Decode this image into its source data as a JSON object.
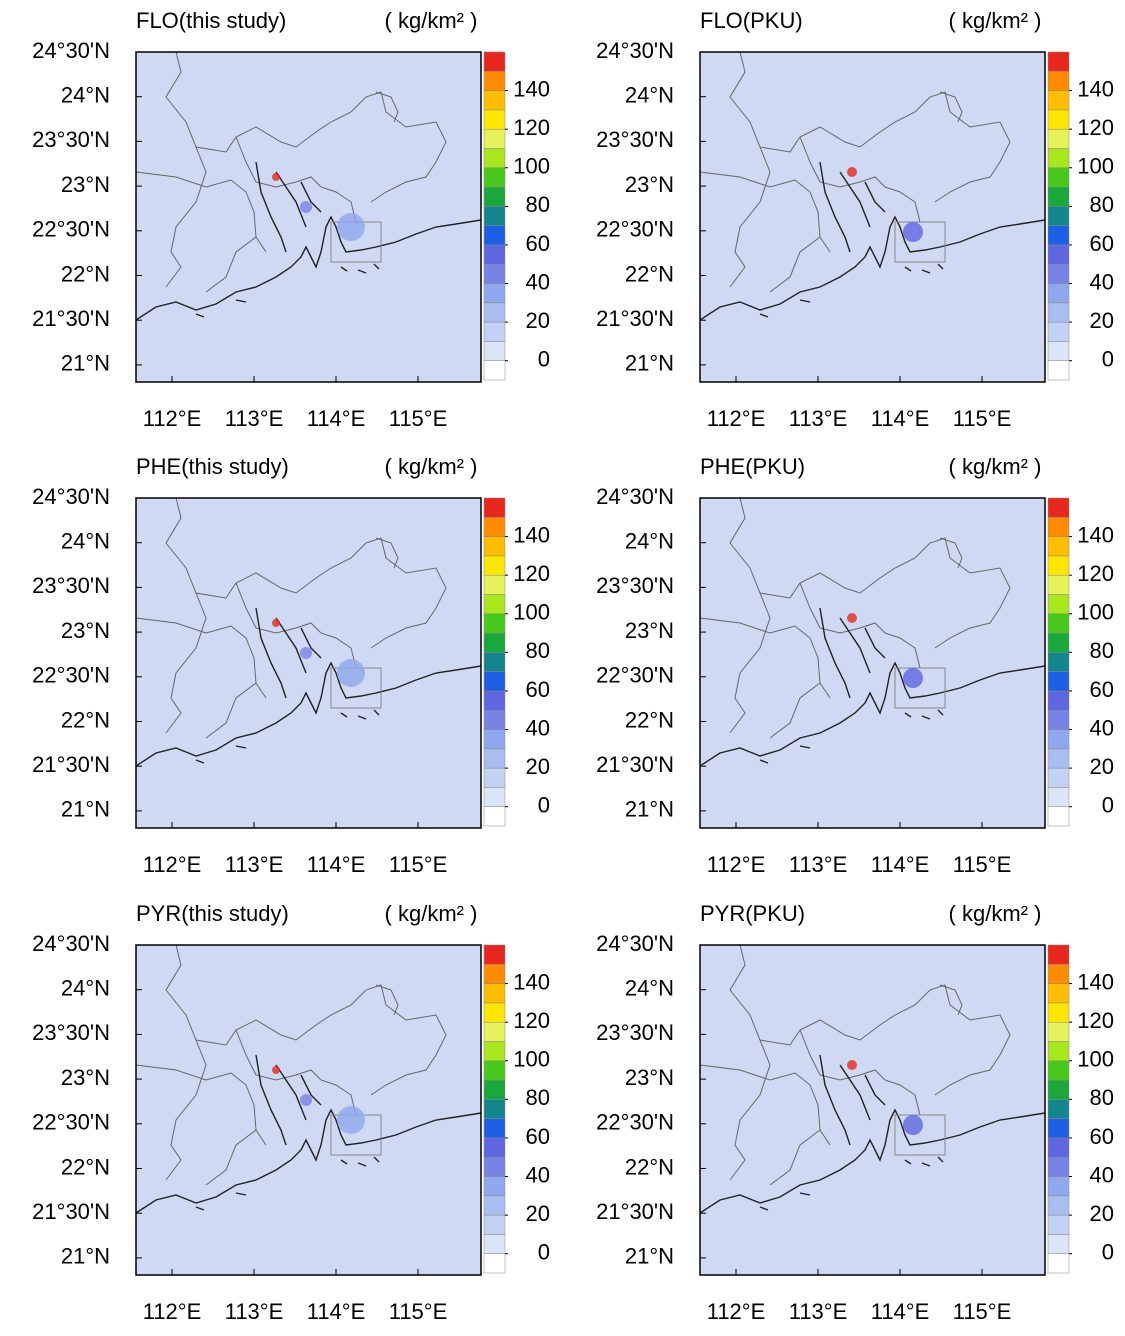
{
  "panels": [
    {
      "title": "FLO(this study)",
      "unit": "( kg/km² )"
    },
    {
      "title": "FLO(PKU)",
      "unit": "( kg/km² )"
    },
    {
      "title": "PHE(this study)",
      "unit": "( kg/km² )"
    },
    {
      "title": "PHE(PKU)",
      "unit": "( kg/km² )"
    },
    {
      "title": "PYR(this study)",
      "unit": "( kg/km² )"
    },
    {
      "title": "PYR(PKU)",
      "unit": "( kg/km² )"
    }
  ],
  "lat_labels": [
    "24°30'N",
    "24°N",
    "23°30'N",
    "23°N",
    "22°30'N",
    "22°N",
    "21°30'N",
    "21°N"
  ],
  "lon_labels": [
    "112°E",
    "113°E",
    "114°E",
    "115°E"
  ],
  "map_background": "#cfd9f3",
  "colorbar": {
    "ticks": [
      0,
      20,
      40,
      60,
      80,
      100,
      120,
      140
    ],
    "colors": [
      "#ffffff",
      "#dce5f7",
      "#c3d2f4",
      "#a9bef0",
      "#8fa7ec",
      "#7783e4",
      "#5e66e0",
      "#1e5fe6",
      "#12868c",
      "#1aa83c",
      "#49c81c",
      "#a8e61e",
      "#e6f25a",
      "#ffe600",
      "#ffbe00",
      "#ff8c00",
      "#e8281e"
    ]
  }
}
